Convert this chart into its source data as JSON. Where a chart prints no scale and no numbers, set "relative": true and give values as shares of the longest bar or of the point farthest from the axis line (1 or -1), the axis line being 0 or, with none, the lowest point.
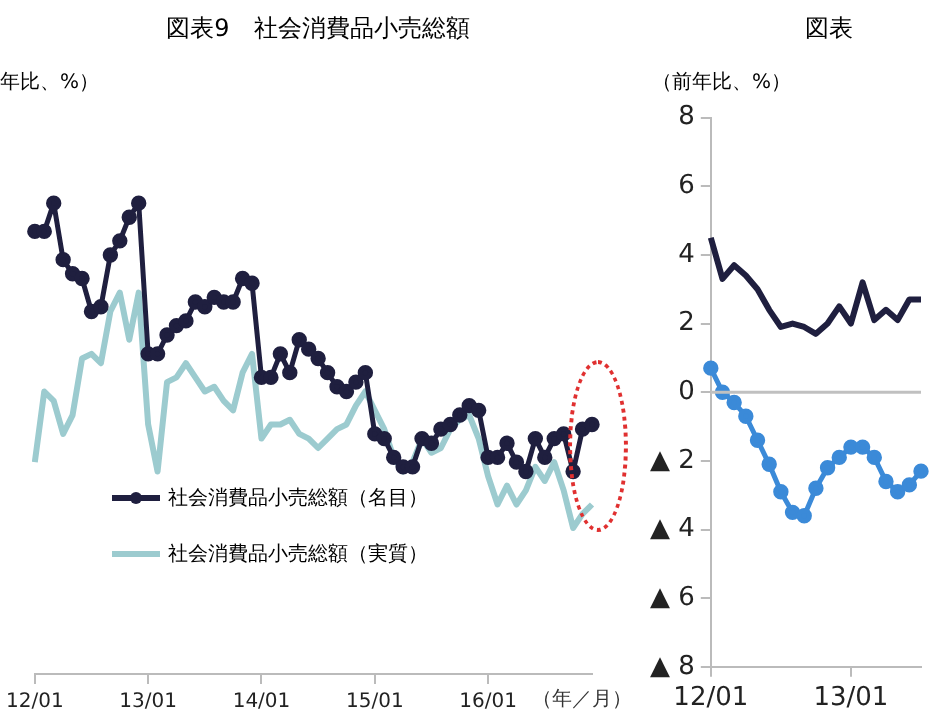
{
  "chart_data": [
    {
      "type": "line",
      "title": "図表9　社会消費品小売総額",
      "ylabel": "年比、%）",
      "xlabel": "（年／月）",
      "relative": true,
      "legend": "bottom left",
      "grid": false,
      "categories": [
        "12/01",
        null,
        null,
        null,
        null,
        null,
        null,
        null,
        null,
        null,
        null,
        null,
        "13/01",
        null,
        null,
        null,
        null,
        null,
        null,
        null,
        null,
        null,
        null,
        null,
        "14/01",
        null,
        null,
        null,
        null,
        null,
        null,
        null,
        null,
        null,
        null,
        null,
        "15/01",
        null,
        null,
        null,
        null,
        null,
        null,
        null,
        null,
        null,
        null,
        null,
        "16/01",
        null,
        null,
        null,
        null,
        null,
        null,
        null,
        null,
        null,
        null,
        null
      ],
      "series": [
        {
          "name": "社会消費品小売総額（名目）",
          "color": "#1f1f3f",
          "marker": "circle",
          "values": [
            0.94,
            0.94,
            1,
            0.88,
            0.85,
            0.84,
            0.77,
            0.78,
            0.89,
            0.92,
            0.97,
            1,
            0.68,
            0.68,
            0.72,
            0.74,
            0.75,
            0.79,
            0.78,
            0.8,
            0.79,
            0.79,
            0.84,
            0.83,
            0.63,
            0.63,
            0.68,
            0.64,
            0.71,
            0.69,
            0.67,
            0.64,
            0.61,
            0.6,
            0.62,
            0.64,
            0.51,
            0.5,
            0.46,
            0.44,
            0.44,
            0.5,
            0.49,
            0.52,
            0.53,
            0.55,
            0.57,
            0.56,
            0.46,
            0.46,
            0.49,
            0.45,
            0.43,
            0.5,
            0.46,
            0.5,
            0.51,
            0.43,
            0.52,
            0.53
          ]
        },
        {
          "name": "社会消費品小売総額（実質）",
          "color": "#9ccbcf",
          "marker": "none",
          "values": [
            0.45,
            0.6,
            0.58,
            0.51,
            0.55,
            0.67,
            0.68,
            0.66,
            0.77,
            0.81,
            0.71,
            0.81,
            0.53,
            0.43,
            0.62,
            0.63,
            0.66,
            0.63,
            0.6,
            0.61,
            0.58,
            0.56,
            0.64,
            0.68,
            0.5,
            0.53,
            0.53,
            0.54,
            0.51,
            0.5,
            0.48,
            0.5,
            0.52,
            0.53,
            0.57,
            0.6,
            0.56,
            0.52,
            0.46,
            0.43,
            0.45,
            0.5,
            0.47,
            0.48,
            0.52,
            0.54,
            0.55,
            0.5,
            0.42,
            0.36,
            0.4,
            0.36,
            0.39,
            0.44,
            0.41,
            0.45,
            0.39,
            0.31,
            0.34,
            0.36
          ]
        }
      ]
    },
    {
      "type": "line",
      "title": "図表",
      "ylabel": "（前年比、%）",
      "grid": false,
      "categories": [
        "12/01",
        null,
        null,
        null,
        null,
        null,
        null,
        null,
        null,
        null,
        null,
        null,
        "13/01",
        null,
        null,
        null,
        null,
        null,
        null
      ],
      "ylim": [
        -8,
        8
      ],
      "yticks": [
        {
          "value": -8,
          "label": "▲ 8"
        },
        {
          "value": -6,
          "label": "▲ 6"
        },
        {
          "value": -4,
          "label": "▲ 4"
        },
        {
          "value": -2,
          "label": "▲ 2"
        },
        0,
        2,
        4,
        6,
        8
      ],
      "ref_lines": [
        {
          "axis": "y",
          "value": 0,
          "color": "#c0c0c0"
        }
      ],
      "series": [
        {
          "color": "#1f1f3f",
          "marker": "none",
          "values": [
            4.5,
            3.3,
            3.7,
            3.4,
            3.0,
            2.4,
            1.9,
            2.0,
            1.9,
            1.7,
            2.0,
            2.5,
            2.0,
            3.2,
            2.1,
            2.4,
            2.1,
            2.7,
            2.7
          ]
        },
        {
          "color": "#3b8ad8",
          "marker": "circle",
          "values": [
            0.7,
            0.0,
            -0.3,
            -0.7,
            -1.4,
            -2.1,
            -2.9,
            -3.5,
            -3.6,
            -2.8,
            -2.2,
            -1.9,
            -1.6,
            -1.6,
            -1.9,
            -2.6,
            -2.9,
            -2.7,
            -2.3
          ]
        }
      ]
    }
  ]
}
